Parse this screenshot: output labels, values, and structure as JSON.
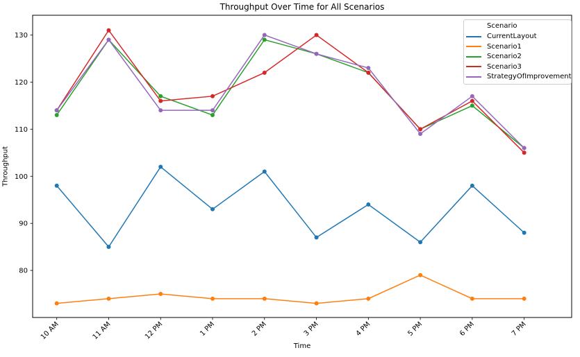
{
  "figure": {
    "kind": "matplotlib-line-chart"
  },
  "chart_data": {
    "type": "line",
    "title": "Throughput Over Time for All Scenarios",
    "xlabel": "Time",
    "ylabel": "Throughput",
    "legend_title": "Scenario",
    "legend_position": "upper right",
    "grid": false,
    "marker": "circle",
    "x_tick_rotation": 45,
    "categories": [
      "10 AM",
      "11 AM",
      "12 PM",
      "1 PM",
      "2 PM",
      "3 PM",
      "4 PM",
      "5 PM",
      "6 PM",
      "7 PM"
    ],
    "y_ticks": [
      80,
      90,
      100,
      110,
      120,
      130
    ],
    "ylim": [
      70,
      134.2
    ],
    "series": [
      {
        "name": "CurrentLayout",
        "color": "#1f77b4",
        "values": [
          98,
          85,
          102,
          93,
          101,
          87,
          94,
          86,
          98,
          88
        ]
      },
      {
        "name": "Scenario1",
        "color": "#ff7f0e",
        "values": [
          73,
          74,
          75,
          74,
          74,
          73,
          74,
          79,
          74,
          74
        ]
      },
      {
        "name": "Scenario2",
        "color": "#2ca02c",
        "values": [
          113,
          129,
          117,
          113,
          129,
          126,
          122,
          110,
          115,
          106
        ]
      },
      {
        "name": "Scenario3",
        "color": "#d62728",
        "values": [
          114,
          131,
          116,
          117,
          122,
          130,
          122,
          110,
          116,
          105
        ]
      },
      {
        "name": "StrategyOfImprovement",
        "color": "#9467bd",
        "values": [
          114,
          129,
          114,
          114,
          130,
          126,
          123,
          109,
          117,
          106
        ]
      }
    ]
  }
}
